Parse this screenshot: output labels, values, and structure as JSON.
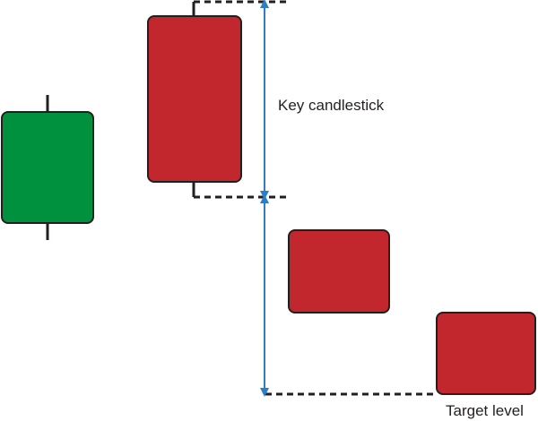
{
  "labels": {
    "key_candlestick": "Key candlestick",
    "target_level": "Target level"
  },
  "colors": {
    "bullish": "#00913f",
    "bearish": "#c1272d",
    "outline": "#231f20",
    "arrow": "#2d7ec2",
    "guide": "#231f20"
  },
  "candles": [
    {
      "role": "bullish-candle",
      "color": "bullish",
      "has_wicks": true
    },
    {
      "role": "key-bearish-candle",
      "color": "bearish",
      "has_wicks": true
    },
    {
      "role": "gap-down-bearish-candle",
      "color": "bearish",
      "has_wicks": false
    },
    {
      "role": "target-bearish-candle",
      "color": "bearish",
      "has_wicks": false
    }
  ]
}
